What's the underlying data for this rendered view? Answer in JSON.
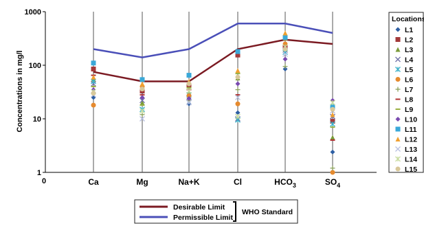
{
  "chart_data": {
    "type": "scatter",
    "ylabel": "Concentrations in mg/l",
    "yscale": "log",
    "ylim": [
      1,
      1000
    ],
    "yticks": [
      "1",
      "10",
      "100",
      "1000"
    ],
    "xorigin_label": "0",
    "categories": [
      "Ca",
      "Mg",
      "Na+K",
      "Cl",
      "HCO3",
      "SO4"
    ],
    "category_labels": [
      {
        "base": "Ca",
        "sub": ""
      },
      {
        "base": "Mg",
        "sub": ""
      },
      {
        "base": "Na+K",
        "sub": ""
      },
      {
        "base": "Cl",
        "sub": ""
      },
      {
        "base": "HCO",
        "sub": "3"
      },
      {
        "base": "SO",
        "sub": "4"
      }
    ],
    "legend_title": "Locations",
    "legend_position": "right",
    "series": [
      {
        "name": "L1",
        "color": "#2e5fa3",
        "marker": "diamond",
        "values": [
          25,
          32,
          19,
          13,
          85,
          2.4
        ]
      },
      {
        "name": "L2",
        "color": "#a33a3a",
        "marker": "square",
        "values": [
          85,
          33,
          42,
          155,
          210,
          9
        ]
      },
      {
        "name": "L3",
        "color": "#7a9a3a",
        "marker": "triangle",
        "values": [
          55,
          20,
          30,
          58,
          200,
          4.5
        ]
      },
      {
        "name": "L4",
        "color": "#6f6fa8",
        "marker": "x",
        "values": [
          45,
          22,
          25,
          10,
          190,
          11
        ]
      },
      {
        "name": "L5",
        "color": "#3ab0c8",
        "marker": "star",
        "values": [
          50,
          15,
          28,
          9.5,
          175,
          8
        ]
      },
      {
        "name": "L6",
        "color": "#e68a2e",
        "marker": "circle",
        "values": [
          18,
          40,
          27,
          19,
          250,
          1
        ]
      },
      {
        "name": "L7",
        "color": "#8aa05a",
        "marker": "plus",
        "values": [
          30,
          12,
          22,
          35,
          95,
          1.2
        ]
      },
      {
        "name": "L8",
        "color": "#b03030",
        "marker": "dash",
        "values": [
          65,
          28,
          35,
          28,
          230,
          4
        ]
      },
      {
        "name": "L9",
        "color": "#9ab040",
        "marker": "dash",
        "values": [
          40,
          18,
          38,
          70,
          300,
          7
        ]
      },
      {
        "name": "L10",
        "color": "#7a4ab0",
        "marker": "diamond",
        "values": [
          35,
          25,
          24,
          45,
          130,
          22
        ]
      },
      {
        "name": "L11",
        "color": "#3aa8d8",
        "marker": "square",
        "values": [
          110,
          54,
          65,
          180,
          330,
          17
        ]
      },
      {
        "name": "L12",
        "color": "#f0a030",
        "marker": "triangle",
        "values": [
          60,
          45,
          50,
          80,
          400,
          12
        ]
      },
      {
        "name": "L13",
        "color": "#b8c0e0",
        "marker": "x",
        "values": [
          28,
          10,
          20,
          25,
          160,
          14
        ]
      },
      {
        "name": "L14",
        "color": "#c8dca0",
        "marker": "star",
        "values": [
          32,
          14,
          33,
          11,
          220,
          20
        ]
      },
      {
        "name": "L15",
        "color": "#d8c89a",
        "marker": "circle",
        "values": [
          30,
          36,
          45,
          60,
          200,
          15
        ]
      }
    ],
    "limits": [
      {
        "name": "Desirable Limit",
        "color": "#7b1a22",
        "values": [
          75,
          50,
          50,
          200,
          300,
          250
        ]
      },
      {
        "name": "Permissible Limit",
        "color": "#4a4fb8",
        "values": [
          200,
          140,
          200,
          600,
          600,
          400
        ]
      }
    ],
    "limit_legend_group": "WHO Standard"
  }
}
